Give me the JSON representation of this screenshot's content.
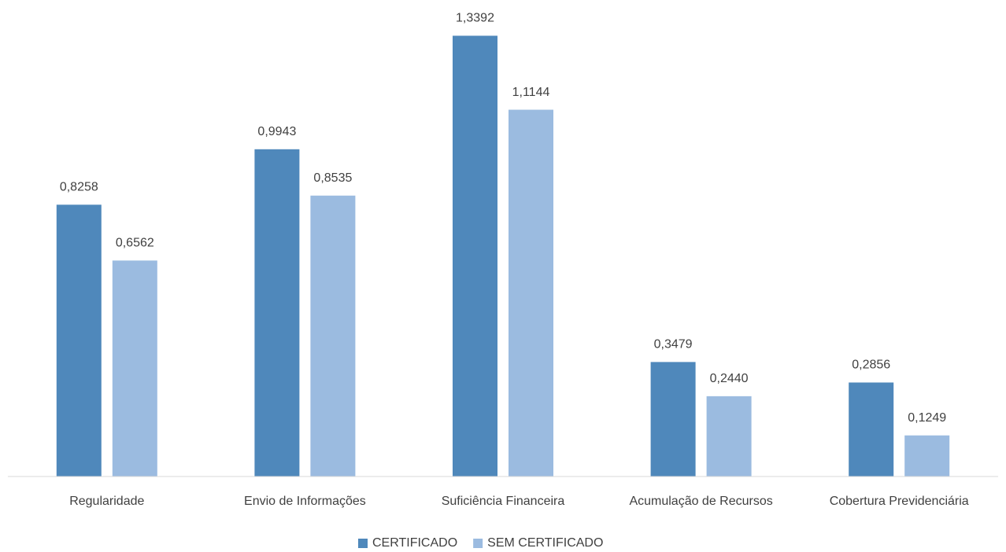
{
  "chart_data": {
    "type": "bar",
    "categories": [
      "Regularidade",
      "Envio de Informações",
      "Suficiência Financeira",
      "Acumulação de Recursos",
      "Cobertura Previdenciária"
    ],
    "series": [
      {
        "name": "CERTIFICADO",
        "color": "#4f88bb",
        "values": [
          0.8258,
          0.9943,
          1.3392,
          0.3479,
          0.2856
        ],
        "value_labels": [
          "0,8258",
          "0,9943",
          "1,3392",
          "0,3479",
          "0,2856"
        ]
      },
      {
        "name": "SEM CERTIFICADO",
        "color": "#9bbbe0",
        "values": [
          0.6562,
          0.8535,
          1.1144,
          0.244,
          0.1249
        ],
        "value_labels": [
          "0,6562",
          "0,8535",
          "1,1144",
          "0,2440",
          "0,1249"
        ]
      }
    ],
    "ylim": [
      0,
      1.4
    ],
    "legend": "bottom"
  }
}
